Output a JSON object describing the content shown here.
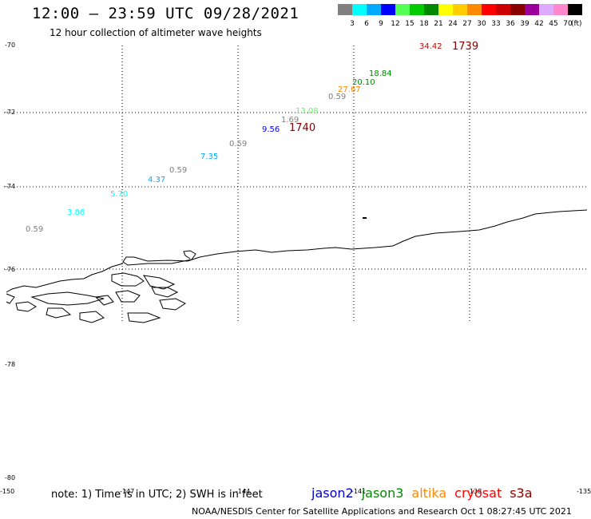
{
  "header": {
    "title": "12:00 – 23:59 UTC 09/28/2021",
    "subtitle": "12 hour collection of altimeter wave heights"
  },
  "legend": {
    "unit": "(ft)",
    "bins": [
      {
        "label": "3",
        "color": "#808080"
      },
      {
        "label": "6",
        "color": "#00ffff"
      },
      {
        "label": "9",
        "color": "#00aaff"
      },
      {
        "label": "12",
        "color": "#0000ff"
      },
      {
        "label": "15",
        "color": "#55ff55"
      },
      {
        "label": "18",
        "color": "#00cc00"
      },
      {
        "label": "21",
        "color": "#008800"
      },
      {
        "label": "24",
        "color": "#ffff00"
      },
      {
        "label": "27",
        "color": "#ffcc00"
      },
      {
        "label": "30",
        "color": "#ff8800"
      },
      {
        "label": "33",
        "color": "#ff0000"
      },
      {
        "label": "36",
        "color": "#cc0000"
      },
      {
        "label": "39",
        "color": "#880000"
      },
      {
        "label": "42",
        "color": "#990099"
      },
      {
        "label": "45",
        "color": "#ddaaff"
      },
      {
        "label": "70",
        "color": "#ff88cc"
      },
      {
        "label": "",
        "color": "#000000"
      }
    ]
  },
  "axes": {
    "lat_labels": [
      "-70",
      "-72",
      "-74",
      "-76",
      "-78",
      "-80"
    ],
    "lon_labels": [
      "-150",
      "-147",
      "-144",
      "-141",
      "-138",
      "-135"
    ]
  },
  "observations": [
    {
      "text": "34.42",
      "color": "#cc0000"
    },
    {
      "text": "1739",
      "color": "#880000"
    },
    {
      "text": "18.84",
      "color": "#008800"
    },
    {
      "text": "20.10",
      "color": "#008800"
    },
    {
      "text": "27.67",
      "color": "#ff8800"
    },
    {
      "text": "0.59",
      "color": "#808080"
    },
    {
      "text": "13.08",
      "color": "#55ff55"
    },
    {
      "text": "1.69",
      "color": "#808080"
    },
    {
      "text": "9.56",
      "color": "#0000ff"
    },
    {
      "text": "1740",
      "color": "#880000"
    },
    {
      "text": "0.59",
      "color": "#808080"
    },
    {
      "text": "7.35",
      "color": "#00aaff"
    },
    {
      "text": "0.59",
      "color": "#808080"
    },
    {
      "text": "4.37",
      "color": "#00aaff"
    },
    {
      "text": "5.70",
      "color": "#00ffff"
    },
    {
      "text": "3.86",
      "color": "#00ffff"
    },
    {
      "text": "0.59",
      "color": "#808080"
    }
  ],
  "footer": {
    "note": "note:  1) Time is in UTC;  2) SWH is in feet",
    "credit": "NOAA/NESDIS Center for Satellite Applications and Research    Oct  1 08:27:45 UTC 2021",
    "satellites": [
      {
        "name": "jason2",
        "color": "#0000cc"
      },
      {
        "name": "jason3",
        "color": "#008800"
      },
      {
        "name": "altika",
        "color": "#ff8800"
      },
      {
        "name": "cryosat",
        "color": "#ff0000"
      },
      {
        "name": "s3a",
        "color": "#880000"
      }
    ]
  }
}
